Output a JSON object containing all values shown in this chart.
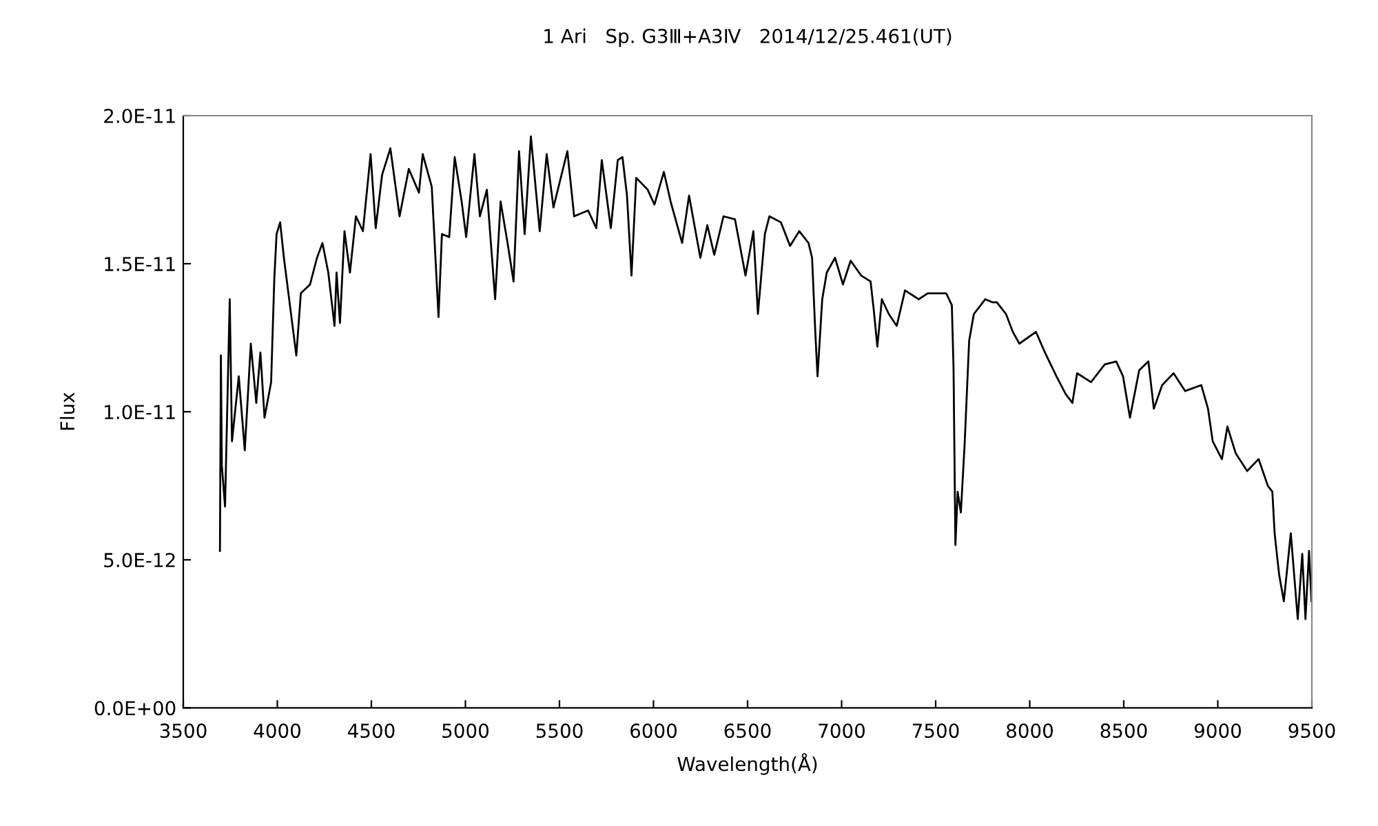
{
  "chart_data": {
    "type": "line",
    "title": "1 Ari   Sp. G3Ⅲ+A3Ⅳ   2014/12/25.461(UT)",
    "xlabel": "Wavelength(Å)",
    "ylabel": "Flux",
    "xlim": [
      3500,
      9500
    ],
    "xticks": [
      3500,
      4000,
      4500,
      5000,
      5500,
      6000,
      6500,
      7000,
      7500,
      8000,
      8500,
      9000,
      9500
    ],
    "ylim": [
      0,
      2e-11
    ],
    "yticks": [
      {
        "value": 0,
        "label": "0.0E+00"
      },
      {
        "value": 5e-12,
        "label": "5.0E-12"
      },
      {
        "value": 1e-11,
        "label": "1.0E-11"
      },
      {
        "value": 1.5e-11,
        "label": "1.5E-11"
      },
      {
        "value": 2e-11,
        "label": "2.0E-11"
      }
    ],
    "grid": false,
    "marker": "none",
    "line_style": "solid",
    "series": [
      {
        "color": "#000000",
        "x": [
          3695,
          3700,
          3705,
          3722,
          3747,
          3759,
          3795,
          3827,
          3859,
          3888,
          3910,
          3932,
          3967,
          3984,
          3996,
          4015,
          4035,
          4077,
          4101,
          4125,
          4174,
          4211,
          4240,
          4271,
          4304,
          4315,
          4333,
          4357,
          4386,
          4418,
          4455,
          4496,
          4523,
          4557,
          4601,
          4650,
          4699,
          4753,
          4773,
          4821,
          4857,
          4875,
          4914,
          4943,
          4980,
          5004,
          5048,
          5077,
          5114,
          5158,
          5187,
          5224,
          5256,
          5285,
          5315,
          5348,
          5395,
          5432,
          5468,
          5542,
          5578,
          5652,
          5696,
          5725,
          5773,
          5810,
          5835,
          5859,
          5883,
          5908,
          5969,
          6005,
          6055,
          6091,
          6152,
          6189,
          6249,
          6286,
          6323,
          6372,
          6433,
          6489,
          6531,
          6555,
          6592,
          6616,
          6677,
          6726,
          6775,
          6824,
          6843,
          6860,
          6872,
          6897,
          6921,
          6965,
          7007,
          7048,
          7104,
          7154,
          7170,
          7190,
          7214,
          7251,
          7293,
          7337,
          7410,
          7458,
          7556,
          7586,
          7595,
          7605,
          7617,
          7634,
          7654,
          7678,
          7703,
          7764,
          7800,
          7825,
          7874,
          7910,
          7945,
          8033,
          8081,
          8142,
          8191,
          8227,
          8252,
          8326,
          8399,
          8460,
          8496,
          8533,
          8582,
          8631,
          8660,
          8704,
          8765,
          8826,
          8912,
          8948,
          8973,
          9022,
          9051,
          9095,
          9156,
          9217,
          9266,
          9290,
          9302,
          9326,
          9351,
          9388,
          9425,
          9449,
          9466,
          9485,
          9498
        ],
        "values": [
          5.3e-12,
          1.19e-11,
          8.2e-12,
          6.8e-12,
          1.38e-11,
          9e-12,
          1.12e-11,
          8.7e-12,
          1.23e-11,
          1.03e-11,
          1.2e-11,
          9.8e-12,
          1.1e-11,
          1.45e-11,
          1.6e-11,
          1.64e-11,
          1.52e-11,
          1.31e-11,
          1.19e-11,
          1.4e-11,
          1.43e-11,
          1.52e-11,
          1.57e-11,
          1.47e-11,
          1.29e-11,
          1.47e-11,
          1.3e-11,
          1.61e-11,
          1.47e-11,
          1.66e-11,
          1.61e-11,
          1.87e-11,
          1.62e-11,
          1.8e-11,
          1.89e-11,
          1.66e-11,
          1.82e-11,
          1.74e-11,
          1.87e-11,
          1.76e-11,
          1.32e-11,
          1.6e-11,
          1.59e-11,
          1.86e-11,
          1.71e-11,
          1.59e-11,
          1.87e-11,
          1.66e-11,
          1.75e-11,
          1.38e-11,
          1.71e-11,
          1.57e-11,
          1.44e-11,
          1.88e-11,
          1.6e-11,
          1.93e-11,
          1.61e-11,
          1.87e-11,
          1.69e-11,
          1.88e-11,
          1.66e-11,
          1.68e-11,
          1.62e-11,
          1.85e-11,
          1.62e-11,
          1.85e-11,
          1.86e-11,
          1.73e-11,
          1.46e-11,
          1.79e-11,
          1.75e-11,
          1.7e-11,
          1.81e-11,
          1.71e-11,
          1.57e-11,
          1.73e-11,
          1.52e-11,
          1.63e-11,
          1.53e-11,
          1.66e-11,
          1.65e-11,
          1.46e-11,
          1.61e-11,
          1.33e-11,
          1.6e-11,
          1.66e-11,
          1.64e-11,
          1.56e-11,
          1.61e-11,
          1.57e-11,
          1.52e-11,
          1.27e-11,
          1.12e-11,
          1.38e-11,
          1.47e-11,
          1.52e-11,
          1.43e-11,
          1.51e-11,
          1.46e-11,
          1.44e-11,
          1.35e-11,
          1.22e-11,
          1.38e-11,
          1.33e-11,
          1.29e-11,
          1.41e-11,
          1.38e-11,
          1.4e-11,
          1.4e-11,
          1.36e-11,
          1.15e-11,
          5.5e-12,
          7.3e-12,
          6.6e-12,
          8.9e-12,
          1.24e-11,
          1.33e-11,
          1.38e-11,
          1.37e-11,
          1.37e-11,
          1.33e-11,
          1.27e-11,
          1.23e-11,
          1.27e-11,
          1.2e-11,
          1.12e-11,
          1.06e-11,
          1.03e-11,
          1.13e-11,
          1.1e-11,
          1.16e-11,
          1.17e-11,
          1.12e-11,
          9.8e-12,
          1.14e-11,
          1.17e-11,
          1.01e-11,
          1.09e-11,
          1.13e-11,
          1.07e-11,
          1.09e-11,
          1.01e-11,
          9e-12,
          8.4e-12,
          9.5e-12,
          8.6e-12,
          8e-12,
          8.4e-12,
          7.5e-12,
          7.3e-12,
          5.9e-12,
          4.5e-12,
          3.6e-12,
          5.9e-12,
          3e-12,
          5.2e-12,
          3e-12,
          5.3e-12,
          3.6e-12
        ]
      }
    ]
  }
}
